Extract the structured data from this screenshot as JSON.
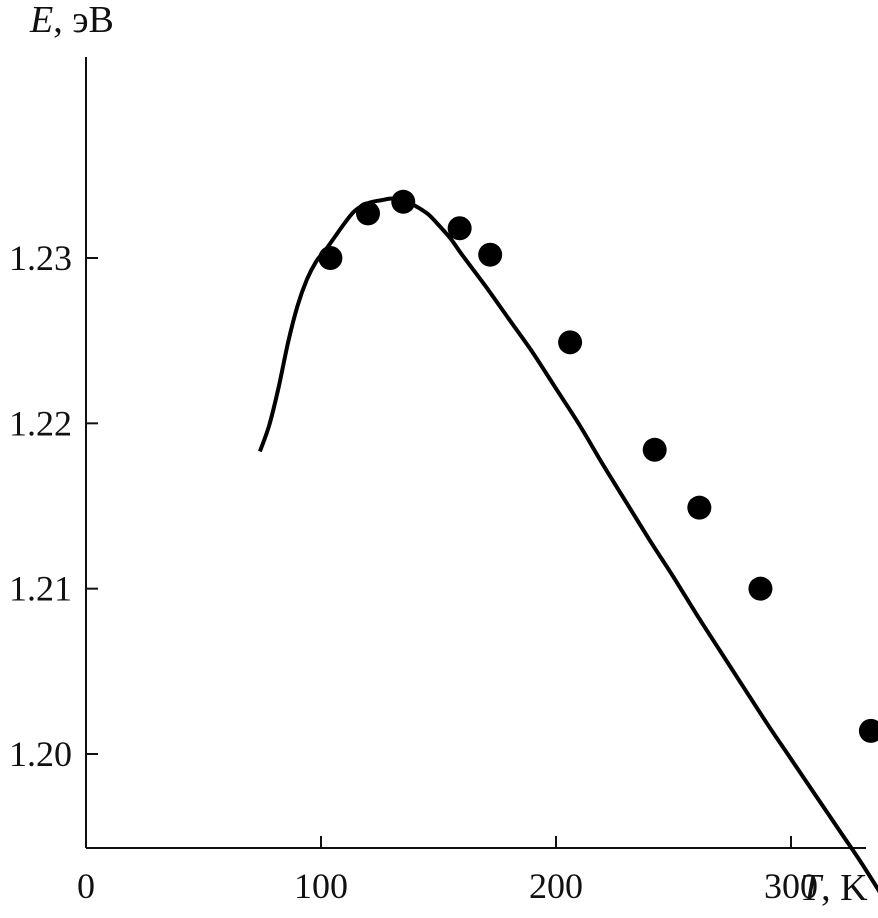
{
  "chart_data": {
    "type": "line",
    "xlabel": {
      "var": "T",
      "unit": ", K"
    },
    "ylabel": {
      "var": "E",
      "unit": ", эВ"
    },
    "xlim": [
      0,
      340
    ],
    "ylim": [
      1.195,
      1.244
    ],
    "x_ticks": [
      {
        "value": 0,
        "label": "0"
      },
      {
        "value": 100,
        "label": "100"
      },
      {
        "value": 200,
        "label": "200"
      },
      {
        "value": 300,
        "label": "300"
      }
    ],
    "y_ticks": [
      {
        "value": 1.2,
        "label": "1.20"
      },
      {
        "value": 1.21,
        "label": "1.21"
      },
      {
        "value": 1.22,
        "label": "1.22"
      },
      {
        "value": 1.23,
        "label": "1.23"
      }
    ],
    "series": [
      {
        "kind": "curve",
        "x": [
          74,
          78,
          82,
          86,
          90,
          94,
          98,
          102,
          106,
          110,
          114,
          118,
          122,
          126,
          130,
          134,
          138,
          142,
          146,
          150,
          155,
          160,
          170,
          180,
          190,
          200,
          210,
          220,
          230,
          240,
          250,
          260,
          270,
          280,
          290,
          300,
          310,
          320,
          330,
          338
        ],
        "y": [
          1.2183,
          1.2199,
          1.2222,
          1.2249,
          1.2271,
          1.2287,
          1.2298,
          1.2305,
          1.2313,
          1.2321,
          1.2328,
          1.2332,
          1.2334,
          1.2335,
          1.2336,
          1.2335,
          1.2333,
          1.233,
          1.2326,
          1.232,
          1.2312,
          1.2302,
          1.2283,
          1.2263,
          1.2243,
          1.2221,
          1.2199,
          1.2175,
          1.2152,
          1.2129,
          1.2107,
          1.2084,
          1.2062,
          1.204,
          1.2018,
          1.1997,
          1.1976,
          1.1955,
          1.1934,
          1.1916
        ]
      },
      {
        "kind": "points",
        "x": [
          104,
          120,
          135,
          159,
          172,
          206,
          242,
          261,
          287,
          334
        ],
        "y": [
          1.23,
          1.2327,
          1.2334,
          1.2318,
          1.2302,
          1.2249,
          1.2184,
          1.2149,
          1.21,
          1.2014
        ]
      }
    ],
    "colors": {
      "axis": "#111111",
      "line": "#000000",
      "marker": "#000000"
    }
  }
}
